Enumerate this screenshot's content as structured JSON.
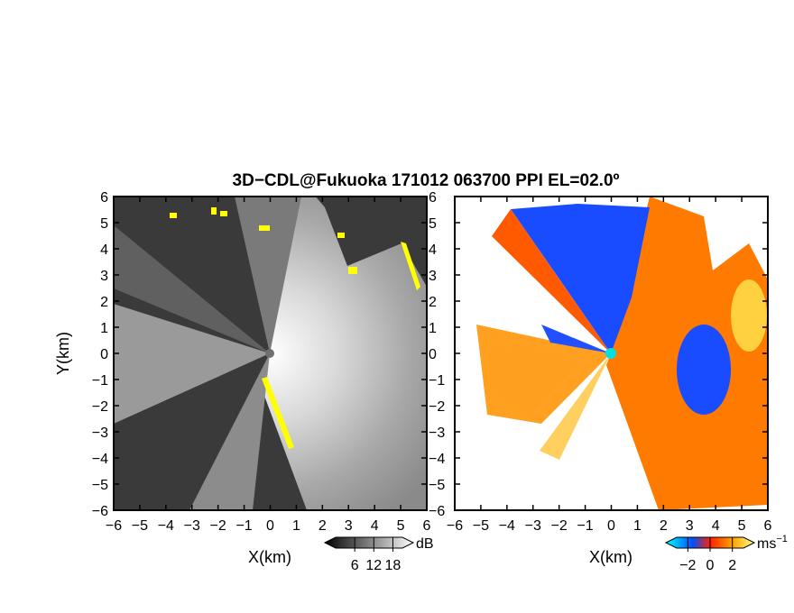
{
  "title": "3D−CDL@Fukuoka 171012 063700 PPI EL=02.0º",
  "chart_data": [
    {
      "type": "heatmap",
      "panel": "left",
      "field": "reflectivity",
      "xlabel": "X(km)",
      "ylabel": "Y(km)",
      "xlim": [
        -6,
        6
      ],
      "ylim": [
        -6,
        6
      ],
      "xticks": [
        -6,
        -5,
        -4,
        -3,
        -2,
        -1,
        0,
        1,
        2,
        3,
        4,
        5,
        6
      ],
      "yticks": [
        -6,
        -5,
        -4,
        -3,
        -2,
        -1,
        0,
        1,
        2,
        3,
        4,
        5,
        6
      ],
      "xtick_labels": [
        "−6",
        "−5",
        "−4",
        "−3",
        "−2",
        "−1",
        "0",
        "1",
        "2",
        "3",
        "4",
        "5",
        "6"
      ],
      "ytick_labels": [
        "−6",
        "−5",
        "−4",
        "−3",
        "−2",
        "−1",
        "0",
        "1",
        "2",
        "3",
        "4",
        "5",
        "6"
      ],
      "colorbar": {
        "unit": "dB",
        "ticks": [
          6,
          12,
          18
        ],
        "tick_labels": [
          "6",
          "12",
          "18"
        ],
        "range": [
          0,
          21
        ],
        "colors": [
          "#000000",
          "#ffffff"
        ]
      },
      "highlight_color": "#ffff00"
    },
    {
      "type": "heatmap",
      "panel": "right",
      "field": "doppler velocity",
      "xlabel": "X(km)",
      "xlim": [
        -6,
        6
      ],
      "ylim": [
        -6,
        6
      ],
      "xticks": [
        -6,
        -5,
        -4,
        -3,
        -2,
        -1,
        0,
        1,
        2,
        3,
        4,
        5,
        6
      ],
      "yticks": [
        -6,
        -5,
        -4,
        -3,
        -2,
        -1,
        0,
        1,
        2,
        3,
        4,
        5,
        6
      ],
      "xtick_labels": [
        "−6",
        "−5",
        "−4",
        "−3",
        "−2",
        "−1",
        "0",
        "1",
        "2",
        "3",
        "4",
        "5",
        "6"
      ],
      "ytick_labels": [
        "−6",
        "−5",
        "−4",
        "−3",
        "−2",
        "−1",
        "0",
        "1",
        "2",
        "3",
        "4",
        "5",
        "6"
      ],
      "colorbar": {
        "unit": "ms",
        "unit_exponent": "−1",
        "ticks": [
          -2,
          0,
          2
        ],
        "tick_labels": [
          "−2",
          "0",
          "2"
        ],
        "range": [
          -3,
          3
        ],
        "colors": [
          "#00ffff",
          "#0040ff",
          "#ff2000",
          "#ffa000",
          "#ffff80"
        ]
      },
      "radar_marker_color": "#00e0e0"
    }
  ]
}
